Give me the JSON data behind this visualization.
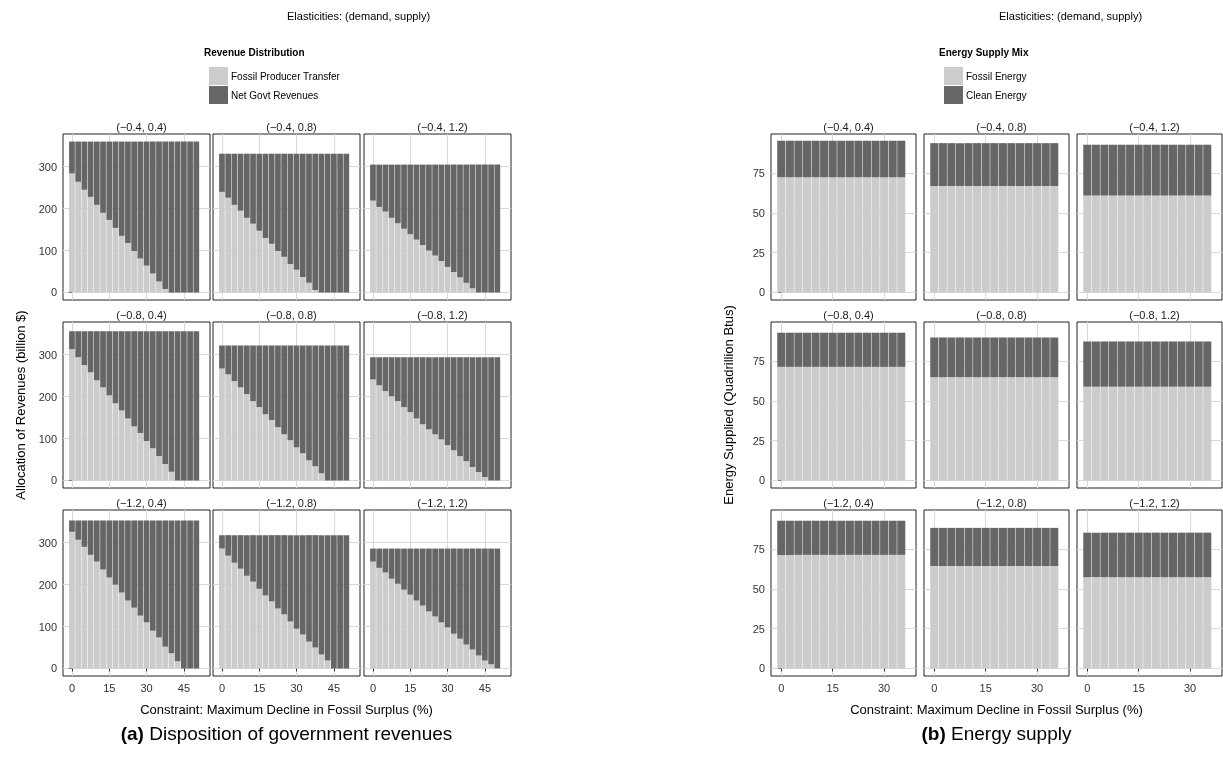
{
  "chart_data": [
    {
      "type": "bar",
      "title": "(−0.4, 0.4)",
      "stacked": true,
      "grid": true,
      "tick_labels": "y",
      "x": [
        0,
        2.5,
        5,
        7.5,
        10,
        12.5,
        15,
        17.5,
        20,
        22.5,
        25,
        27.5,
        30,
        32.5,
        35,
        37.5,
        40,
        42.5,
        45,
        47.5,
        50
      ],
      "xlim": [
        -3.6,
        55.5
      ],
      "xticks": [
        0,
        15,
        30,
        45
      ],
      "ylim": [
        -18,
        378
      ],
      "yticks": [
        0,
        100,
        200,
        300
      ],
      "series": [
        {
          "color": "#cccccc",
          "values": [
            284,
            264,
            245,
            228,
            209,
            190,
            173,
            154,
            135,
            118,
            99,
            81,
            64,
            45,
            26,
            8,
            0,
            0,
            0,
            0,
            0
          ]
        },
        {
          "color": "#666666",
          "values": [
            76,
            96,
            115,
            132,
            151,
            170,
            187,
            206,
            225,
            242,
            261,
            279,
            296,
            315,
            334,
            352,
            360,
            360,
            360,
            360,
            360
          ]
        }
      ]
    },
    {
      "type": "bar",
      "title": "(−0.4, 0.8)",
      "subtitle": "Elasticities: (demand, supply)",
      "legend_title": "Revenue Distribution",
      "legend": "top",
      "stacked": true,
      "grid": true,
      "tick_labels": false,
      "x": [
        0,
        2.5,
        5,
        7.5,
        10,
        12.5,
        15,
        17.5,
        20,
        22.5,
        25,
        27.5,
        30,
        32.5,
        35,
        37.5,
        40,
        42.5,
        45,
        47.5,
        50
      ],
      "xlim": [
        -3.6,
        55.5
      ],
      "xticks": [
        0,
        15,
        30,
        45
      ],
      "ylim": [
        -18,
        378
      ],
      "yticks": [
        0,
        100,
        200,
        300
      ],
      "series": [
        {
          "name": "Fossil Producer Transfer",
          "color": "#cccccc",
          "values": [
            240,
            226,
            209,
            195,
            178,
            164,
            147,
            130,
            116,
            99,
            85,
            68,
            54,
            37,
            23,
            6,
            0,
            0,
            0,
            0,
            0
          ]
        },
        {
          "name": "Net Govt Revenues",
          "color": "#666666",
          "values": [
            91,
            105,
            122,
            136,
            153,
            167,
            184,
            201,
            215,
            232,
            246,
            263,
            277,
            294,
            308,
            325,
            331,
            331,
            331,
            331,
            331
          ]
        }
      ]
    },
    {
      "type": "bar",
      "title": "(−0.4, 1.2)",
      "stacked": true,
      "grid": true,
      "tick_labels": false,
      "x": [
        0,
        2.5,
        5,
        7.5,
        10,
        12.5,
        15,
        17.5,
        20,
        22.5,
        25,
        27.5,
        30,
        32.5,
        35,
        37.5,
        40,
        42.5,
        45,
        47.5,
        50
      ],
      "xlim": [
        -3.6,
        55.5
      ],
      "xticks": [
        0,
        15,
        30,
        45
      ],
      "ylim": [
        -18,
        378
      ],
      "yticks": [
        0,
        100,
        200,
        300
      ],
      "series": [
        {
          "color": "#cccccc",
          "values": [
            219,
            204,
            193,
            178,
            165,
            152,
            139,
            126,
            113,
            100,
            88,
            75,
            61,
            49,
            36,
            23,
            10,
            0,
            0,
            0,
            0
          ]
        },
        {
          "color": "#666666",
          "values": [
            86,
            101,
            112,
            127,
            140,
            153,
            166,
            179,
            192,
            205,
            217,
            230,
            244,
            256,
            269,
            282,
            295,
            305,
            305,
            305,
            305
          ]
        }
      ]
    },
    {
      "type": "bar",
      "title": "(−0.8, 0.4)",
      "ylabel": "Allocation of Revenues (billion $)",
      "stacked": true,
      "grid": true,
      "tick_labels": "y",
      "x": [
        0,
        2.5,
        5,
        7.5,
        10,
        12.5,
        15,
        17.5,
        20,
        22.5,
        25,
        27.5,
        30,
        32.5,
        35,
        37.5,
        40,
        42.5,
        45,
        47.5,
        50
      ],
      "xlim": [
        -3.6,
        55.5
      ],
      "xticks": [
        0,
        15,
        30,
        45
      ],
      "ylim": [
        -18,
        378
      ],
      "yticks": [
        0,
        100,
        200,
        300
      ],
      "series": [
        {
          "color": "#cccccc",
          "values": [
            313,
            294,
            275,
            258,
            239,
            222,
            203,
            184,
            167,
            148,
            129,
            113,
            94,
            77,
            58,
            39,
            21,
            0,
            0,
            0,
            0
          ]
        },
        {
          "color": "#666666",
          "values": [
            43,
            62,
            81,
            98,
            117,
            134,
            153,
            172,
            189,
            208,
            227,
            243,
            262,
            279,
            298,
            317,
            335,
            356,
            356,
            356,
            356
          ]
        }
      ]
    },
    {
      "type": "bar",
      "title": "(−0.8, 0.8)",
      "stacked": true,
      "grid": true,
      "tick_labels": false,
      "x": [
        0,
        2.5,
        5,
        7.5,
        10,
        12.5,
        15,
        17.5,
        20,
        22.5,
        25,
        27.5,
        30,
        32.5,
        35,
        37.5,
        40,
        42.5,
        45,
        47.5,
        50
      ],
      "xlim": [
        -3.6,
        55.5
      ],
      "xticks": [
        0,
        15,
        30,
        45
      ],
      "ylim": [
        -18,
        378
      ],
      "yticks": [
        0,
        100,
        200,
        300
      ],
      "series": [
        {
          "color": "#cccccc",
          "values": [
            267,
            253,
            237,
            222,
            206,
            189,
            175,
            158,
            144,
            127,
            110,
            96,
            79,
            65,
            48,
            34,
            17,
            0,
            0,
            0,
            0
          ]
        },
        {
          "color": "#666666",
          "values": [
            55,
            69,
            85,
            100,
            116,
            133,
            147,
            164,
            178,
            195,
            212,
            226,
            243,
            257,
            274,
            288,
            305,
            322,
            322,
            322,
            322
          ]
        }
      ]
    },
    {
      "type": "bar",
      "title": "(−0.8, 1.2)",
      "stacked": true,
      "grid": true,
      "tick_labels": false,
      "x": [
        0,
        2.5,
        5,
        7.5,
        10,
        12.5,
        15,
        17.5,
        20,
        22.5,
        25,
        27.5,
        30,
        32.5,
        35,
        37.5,
        40,
        42.5,
        45,
        47.5,
        50
      ],
      "xlim": [
        -3.6,
        55.5
      ],
      "xticks": [
        0,
        15,
        30,
        45
      ],
      "ylim": [
        -18,
        378
      ],
      "yticks": [
        0,
        100,
        200,
        300
      ],
      "series": [
        {
          "color": "#cccccc",
          "values": [
            241,
            227,
            213,
            201,
            189,
            175,
            163,
            148,
            134,
            122,
            110,
            98,
            84,
            72,
            58,
            46,
            32,
            20,
            8,
            0,
            0
          ]
        },
        {
          "color": "#666666",
          "values": [
            53,
            67,
            81,
            93,
            105,
            119,
            131,
            146,
            160,
            172,
            184,
            196,
            210,
            222,
            236,
            248,
            262,
            274,
            286,
            294,
            294
          ]
        }
      ]
    },
    {
      "type": "bar",
      "title": "(−1.2, 0.4)",
      "stacked": true,
      "grid": true,
      "x": [
        0,
        2.5,
        5,
        7.5,
        10,
        12.5,
        15,
        17.5,
        20,
        22.5,
        25,
        27.5,
        30,
        32.5,
        35,
        37.5,
        40,
        42.5,
        45,
        47.5,
        50
      ],
      "xlim": [
        -3.6,
        55.5
      ],
      "xticks": [
        0,
        15,
        30,
        45
      ],
      "ylim": [
        -18,
        378
      ],
      "yticks": [
        0,
        100,
        200,
        300
      ],
      "series": [
        {
          "color": "#cccccc",
          "values": [
            326,
            307,
            290,
            271,
            255,
            236,
            217,
            200,
            181,
            162,
            145,
            126,
            110,
            90,
            74,
            52,
            36,
            17,
            0,
            0,
            0
          ]
        },
        {
          "color": "#666666",
          "values": [
            27,
            46,
            63,
            82,
            98,
            117,
            136,
            153,
            172,
            191,
            208,
            227,
            243,
            263,
            279,
            301,
            317,
            336,
            353,
            353,
            353
          ]
        }
      ]
    },
    {
      "type": "bar",
      "title": "(−1.2, 0.8)",
      "xlabel": "Constraint: Maximum Decline in Fossil Surplus (%)",
      "annotations": [
        "(a) Disposition of government revenues"
      ],
      "stacked": true,
      "grid": true,
      "tick_labels": "x",
      "x": [
        0,
        2.5,
        5,
        7.5,
        10,
        12.5,
        15,
        17.5,
        20,
        22.5,
        25,
        27.5,
        30,
        32.5,
        35,
        37.5,
        40,
        42.5,
        45,
        47.5,
        50
      ],
      "xlim": [
        -3.6,
        55.5
      ],
      "xticks": [
        0,
        15,
        30,
        45
      ],
      "ylim": [
        -18,
        378
      ],
      "yticks": [
        0,
        100,
        200,
        300
      ],
      "series": [
        {
          "color": "#cccccc",
          "values": [
            286,
            269,
            252,
            238,
            221,
            207,
            190,
            174,
            160,
            143,
            129,
            112,
            95,
            81,
            64,
            50,
            33,
            19,
            0,
            0,
            0
          ]
        },
        {
          "color": "#666666",
          "values": [
            32,
            49,
            66,
            80,
            97,
            111,
            128,
            144,
            158,
            175,
            189,
            206,
            223,
            237,
            254,
            268,
            285,
            299,
            318,
            318,
            318
          ]
        }
      ]
    },
    {
      "type": "bar",
      "title": "(−1.2, 1.2)",
      "stacked": true,
      "grid": true,
      "tick_labels": "x",
      "x": [
        0,
        2.5,
        5,
        7.5,
        10,
        12.5,
        15,
        17.5,
        20,
        22.5,
        25,
        27.5,
        30,
        32.5,
        35,
        37.5,
        40,
        42.5,
        45,
        47.5,
        50
      ],
      "xlim": [
        -3.6,
        55.5
      ],
      "xticks": [
        0,
        15,
        30,
        45
      ],
      "ylim": [
        -18,
        378
      ],
      "yticks": [
        0,
        100,
        200,
        300
      ],
      "series": [
        {
          "color": "#cccccc",
          "values": [
            255,
            240,
            229,
            214,
            202,
            188,
            176,
            162,
            150,
            136,
            124,
            110,
            98,
            83,
            71,
            57,
            45,
            31,
            19,
            10,
            0
          ]
        },
        {
          "color": "#666666",
          "values": [
            31,
            46,
            57,
            72,
            84,
            98,
            110,
            124,
            136,
            150,
            162,
            176,
            188,
            203,
            215,
            229,
            241,
            255,
            267,
            276,
            286
          ]
        }
      ]
    },
    {
      "type": "bar",
      "title": "(−0.4, 0.4)",
      "stacked": true,
      "grid": true,
      "tick_labels": "y",
      "x": [
        0,
        2.5,
        5,
        7.5,
        10,
        12.5,
        15,
        17.5,
        20,
        22.5,
        25,
        27.5,
        30,
        32.5,
        35
      ],
      "xlim": [
        -3,
        39.3
      ],
      "xticks": [
        0,
        15,
        30
      ],
      "ylim": [
        -4.75,
        99.75
      ],
      "yticks": [
        0,
        25,
        50,
        75
      ],
      "series": [
        {
          "color": "#cccccc",
          "values": [
            72.5,
            72.5,
            72.5,
            72.5,
            72.5,
            72.5,
            72.5,
            72.5,
            72.5,
            72.5,
            72.5,
            72.5,
            72.5,
            72.5,
            72.5
          ]
        },
        {
          "color": "#666666",
          "values": [
            23,
            23,
            23,
            23,
            23,
            23,
            23,
            23,
            23,
            23,
            23,
            23,
            23,
            23,
            23
          ]
        }
      ]
    },
    {
      "type": "bar",
      "title": "(−0.4, 0.8)",
      "subtitle": "Elasticities: (demand, supply)",
      "legend_title": "Energy Supply Mix",
      "legend": "top",
      "stacked": true,
      "grid": true,
      "tick_labels": false,
      "x": [
        0,
        2.5,
        5,
        7.5,
        10,
        12.5,
        15,
        17.5,
        20,
        22.5,
        25,
        27.5,
        30,
        32.5,
        35
      ],
      "xlim": [
        -3,
        39.3
      ],
      "xticks": [
        0,
        15,
        30
      ],
      "ylim": [
        -4.75,
        99.75
      ],
      "yticks": [
        0,
        25,
        50,
        75
      ],
      "series": [
        {
          "name": "Fossil Energy",
          "color": "#cccccc",
          "values": [
            67,
            67,
            67,
            67,
            67,
            67,
            67,
            67,
            67,
            67,
            67,
            67,
            67,
            67,
            67
          ]
        },
        {
          "name": "Clean Energy",
          "color": "#666666",
          "values": [
            27,
            27,
            27,
            27,
            27,
            27,
            27,
            27,
            27,
            27,
            27,
            27,
            27,
            27,
            27
          ]
        }
      ]
    },
    {
      "type": "bar",
      "title": "(−0.4, 1.2)",
      "stacked": true,
      "grid": true,
      "tick_labels": false,
      "x": [
        0,
        2.5,
        5,
        7.5,
        10,
        12.5,
        15,
        17.5,
        20,
        22.5,
        25,
        27.5,
        30,
        32.5,
        35
      ],
      "xlim": [
        -3,
        39.3
      ],
      "xticks": [
        0,
        15,
        30
      ],
      "ylim": [
        -4.75,
        99.75
      ],
      "yticks": [
        0,
        25,
        50,
        75
      ],
      "series": [
        {
          "color": "#cccccc",
          "values": [
            61,
            61,
            61,
            61,
            61,
            61,
            61,
            61,
            61,
            61,
            61,
            61,
            61,
            61,
            61
          ]
        },
        {
          "color": "#666666",
          "values": [
            32,
            32,
            32,
            32,
            32,
            32,
            32,
            32,
            32,
            32,
            32,
            32,
            32,
            32,
            32
          ]
        }
      ]
    },
    {
      "type": "bar",
      "title": "(−0.8, 0.4)",
      "ylabel": "Energy Supplied (Quadrillion Btus)",
      "stacked": true,
      "grid": true,
      "tick_labels": "y",
      "x": [
        0,
        2.5,
        5,
        7.5,
        10,
        12.5,
        15,
        17.5,
        20,
        22.5,
        25,
        27.5,
        30,
        32.5,
        35
      ],
      "xlim": [
        -3,
        39.3
      ],
      "xticks": [
        0,
        15,
        30
      ],
      "ylim": [
        -4.75,
        99.75
      ],
      "yticks": [
        0,
        25,
        50,
        75
      ],
      "series": [
        {
          "color": "#cccccc",
          "values": [
            71.5,
            71.5,
            71.5,
            71.5,
            71.5,
            71.5,
            71.5,
            71.5,
            71.5,
            71.5,
            71.5,
            71.5,
            71.5,
            71.5,
            71.5
          ]
        },
        {
          "color": "#666666",
          "values": [
            21.5,
            21.5,
            21.5,
            21.5,
            21.5,
            21.5,
            21.5,
            21.5,
            21.5,
            21.5,
            21.5,
            21.5,
            21.5,
            21.5,
            21.5
          ]
        }
      ]
    },
    {
      "type": "bar",
      "title": "(−0.8, 0.8)",
      "stacked": true,
      "grid": true,
      "tick_labels": false,
      "x": [
        0,
        2.5,
        5,
        7.5,
        10,
        12.5,
        15,
        17.5,
        20,
        22.5,
        25,
        27.5,
        30,
        32.5,
        35
      ],
      "xlim": [
        -3,
        39.3
      ],
      "xticks": [
        0,
        15,
        30
      ],
      "ylim": [
        -4.75,
        99.75
      ],
      "yticks": [
        0,
        25,
        50,
        75
      ],
      "series": [
        {
          "color": "#cccccc",
          "values": [
            65,
            65,
            65,
            65,
            65,
            65,
            65,
            65,
            65,
            65,
            65,
            65,
            65,
            65,
            65
          ]
        },
        {
          "color": "#666666",
          "values": [
            25,
            25,
            25,
            25,
            25,
            25,
            25,
            25,
            25,
            25,
            25,
            25,
            25,
            25,
            25
          ]
        }
      ]
    },
    {
      "type": "bar",
      "title": "(−0.8, 1.2)",
      "stacked": true,
      "grid": true,
      "tick_labels": false,
      "x": [
        0,
        2.5,
        5,
        7.5,
        10,
        12.5,
        15,
        17.5,
        20,
        22.5,
        25,
        27.5,
        30,
        32.5,
        35
      ],
      "xlim": [
        -3,
        39.3
      ],
      "xticks": [
        0,
        15,
        30
      ],
      "ylim": [
        -4.75,
        99.75
      ],
      "yticks": [
        0,
        25,
        50,
        75
      ],
      "series": [
        {
          "color": "#cccccc",
          "values": [
            59,
            59,
            59,
            59,
            59,
            59,
            59,
            59,
            59,
            59,
            59,
            59,
            59,
            59,
            59
          ]
        },
        {
          "color": "#666666",
          "values": [
            28.5,
            28.5,
            28.5,
            28.5,
            28.5,
            28.5,
            28.5,
            28.5,
            28.5,
            28.5,
            28.5,
            28.5,
            28.5,
            28.5,
            28.5
          ]
        }
      ]
    },
    {
      "type": "bar",
      "title": "(−1.2, 0.4)",
      "stacked": true,
      "grid": true,
      "x": [
        0,
        2.5,
        5,
        7.5,
        10,
        12.5,
        15,
        17.5,
        20,
        22.5,
        25,
        27.5,
        30,
        32.5,
        35
      ],
      "xlim": [
        -3,
        39.3
      ],
      "xticks": [
        0,
        15,
        30
      ],
      "ylim": [
        -4.75,
        99.75
      ],
      "yticks": [
        0,
        25,
        50,
        75
      ],
      "series": [
        {
          "color": "#cccccc",
          "values": [
            71.5,
            71.5,
            71.5,
            71.5,
            71.5,
            71.5,
            71.5,
            71.5,
            71.5,
            71.5,
            71.5,
            71.5,
            71.5,
            71.5,
            71.5
          ]
        },
        {
          "color": "#666666",
          "values": [
            21.5,
            21.5,
            21.5,
            21.5,
            21.5,
            21.5,
            21.5,
            21.5,
            21.5,
            21.5,
            21.5,
            21.5,
            21.5,
            21.5,
            21.5
          ]
        }
      ]
    },
    {
      "type": "bar",
      "title": "(−1.2, 0.8)",
      "xlabel": "Constraint: Maximum Decline in Fossil Surplus (%)",
      "annotations": [
        "(b) Energy supply"
      ],
      "stacked": true,
      "grid": true,
      "tick_labels": "x",
      "x": [
        0,
        2.5,
        5,
        7.5,
        10,
        12.5,
        15,
        17.5,
        20,
        22.5,
        25,
        27.5,
        30,
        32.5,
        35
      ],
      "xlim": [
        -3,
        39.3
      ],
      "xticks": [
        0,
        15,
        30
      ],
      "ylim": [
        -4.75,
        99.75
      ],
      "yticks": [
        0,
        25,
        50,
        75
      ],
      "series": [
        {
          "color": "#cccccc",
          "values": [
            64.5,
            64.5,
            64.5,
            64.5,
            64.5,
            64.5,
            64.5,
            64.5,
            64.5,
            64.5,
            64.5,
            64.5,
            64.5,
            64.5,
            64.5
          ]
        },
        {
          "color": "#666666",
          "values": [
            24,
            24,
            24,
            24,
            24,
            24,
            24,
            24,
            24,
            24,
            24,
            24,
            24,
            24,
            24
          ]
        }
      ]
    },
    {
      "type": "bar",
      "title": "(−1.2, 1.2)",
      "stacked": true,
      "grid": true,
      "tick_labels": "x",
      "x": [
        0,
        2.5,
        5,
        7.5,
        10,
        12.5,
        15,
        17.5,
        20,
        22.5,
        25,
        27.5,
        30,
        32.5,
        35
      ],
      "xlim": [
        -3,
        39.3
      ],
      "xticks": [
        0,
        15,
        30
      ],
      "ylim": [
        -4.75,
        99.75
      ],
      "yticks": [
        0,
        25,
        50,
        75
      ],
      "series": [
        {
          "color": "#cccccc",
          "values": [
            57.5,
            57.5,
            57.5,
            57.5,
            57.5,
            57.5,
            57.5,
            57.5,
            57.5,
            57.5,
            57.5,
            57.5,
            57.5,
            57.5,
            57.5
          ]
        },
        {
          "color": "#666666",
          "values": [
            28,
            28,
            28,
            28,
            28,
            28,
            28,
            28,
            28,
            28,
            28,
            28,
            28,
            28,
            28
          ]
        }
      ]
    }
  ]
}
